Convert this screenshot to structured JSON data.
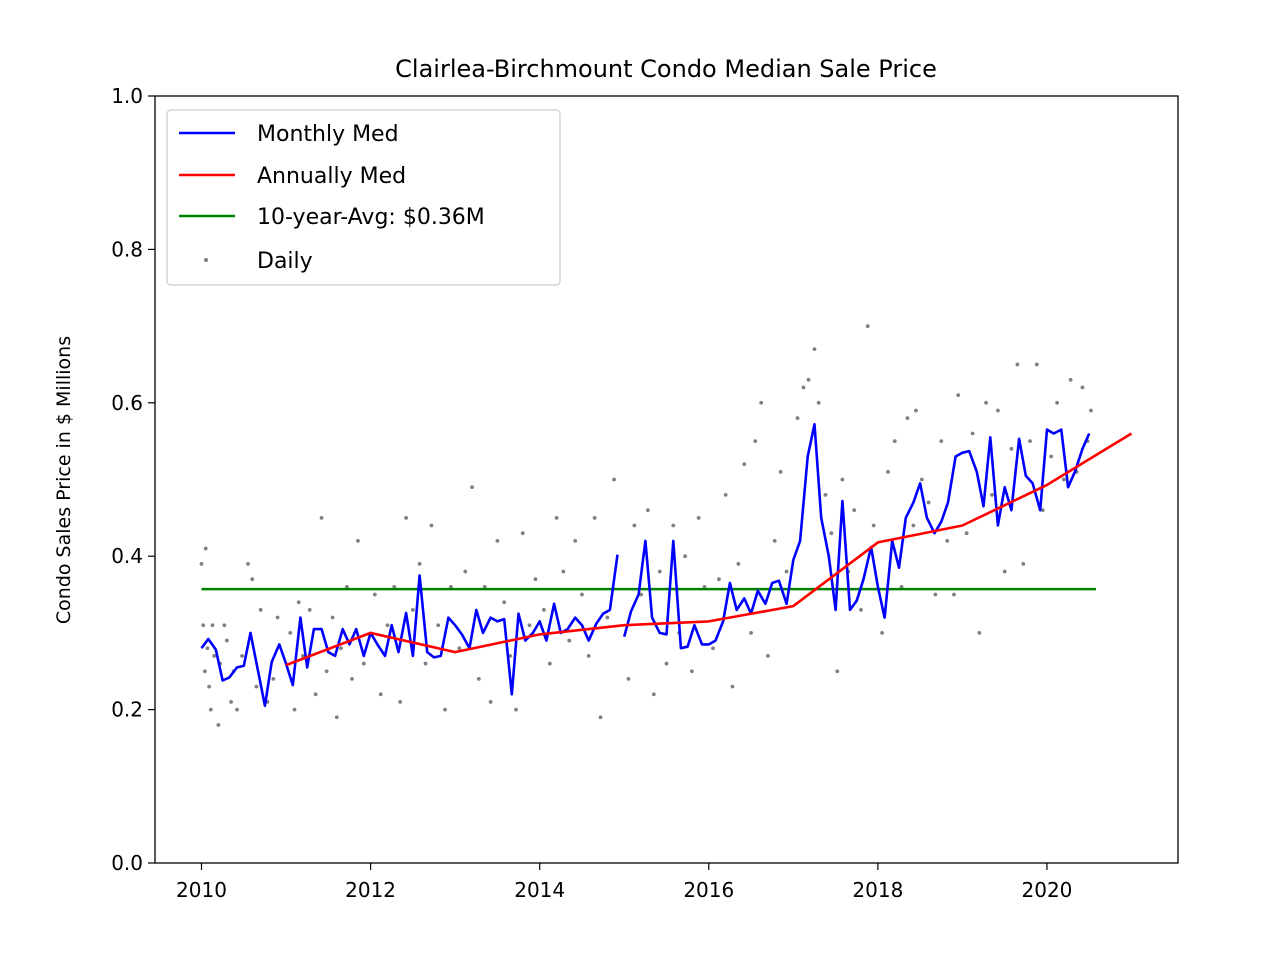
{
  "chart_data": {
    "type": "line",
    "title": "Clairlea-Birchmount Condo Median Sale Price",
    "xlabel": "",
    "ylabel": "Condo Sales Price in $ Millions",
    "xlim": [
      2009.45,
      2021.55
    ],
    "ylim": [
      0.0,
      1.0
    ],
    "x_ticks": [
      2010,
      2012,
      2014,
      2016,
      2018,
      2020
    ],
    "y_ticks": [
      "0.0",
      "0.2",
      "0.4",
      "0.6",
      "0.8",
      "1.0"
    ],
    "grid": false,
    "legend_position": "top-left",
    "colors": {
      "monthly": "#0000ff",
      "annual": "#ff0000",
      "avg": "#008000",
      "daily": "#808080"
    },
    "series": [
      {
        "name": "Monthly Med",
        "kind": "line",
        "segments": [
          {
            "x": [
              2010.0,
              2010.08,
              2010.17,
              2010.25,
              2010.33,
              2010.42,
              2010.5,
              2010.58,
              2010.67,
              2010.75,
              2010.83,
              2010.92,
              2011.0,
              2011.08,
              2011.17,
              2011.25,
              2011.33,
              2011.42,
              2011.5,
              2011.58,
              2011.67,
              2011.75,
              2011.83,
              2011.92,
              2012.0,
              2012.08,
              2012.17,
              2012.25,
              2012.33,
              2012.42,
              2012.5,
              2012.58,
              2012.67,
              2012.75,
              2012.83,
              2012.92,
              2013.0,
              2013.08,
              2013.17,
              2013.25,
              2013.33,
              2013.42,
              2013.5,
              2013.58,
              2013.67,
              2013.75,
              2013.83,
              2013.92,
              2014.0,
              2014.08,
              2014.17,
              2014.25,
              2014.33,
              2014.42,
              2014.5,
              2014.58,
              2014.67,
              2014.75,
              2014.83,
              2014.92
            ],
            "y": [
              0.28,
              0.292,
              0.278,
              0.238,
              0.242,
              0.255,
              0.257,
              0.3,
              0.25,
              0.205,
              0.262,
              0.285,
              0.26,
              0.232,
              0.32,
              0.255,
              0.305,
              0.305,
              0.275,
              0.27,
              0.305,
              0.285,
              0.305,
              0.27,
              0.3,
              0.285,
              0.27,
              0.31,
              0.275,
              0.326,
              0.27,
              0.375,
              0.275,
              0.268,
              0.27,
              0.32,
              0.31,
              0.298,
              0.28,
              0.33,
              0.3,
              0.32,
              0.315,
              0.318,
              0.22,
              0.325,
              0.29,
              0.3,
              0.315,
              0.29,
              0.338,
              0.3,
              0.305,
              0.32,
              0.31,
              0.29,
              0.312,
              0.325,
              0.33,
              0.402
            ]
          },
          {
            "x": [
              2015.0,
              2015.08,
              2015.17,
              2015.25,
              2015.33,
              2015.42,
              2015.5,
              2015.58,
              2015.67,
              2015.75,
              2015.83,
              2015.92,
              2016.0,
              2016.08,
              2016.17,
              2016.25,
              2016.33,
              2016.42,
              2016.5,
              2016.58,
              2016.67,
              2016.75,
              2016.83,
              2016.92,
              2017.0,
              2017.08,
              2017.17,
              2017.25,
              2017.33,
              2017.42,
              2017.5,
              2017.58,
              2017.67,
              2017.75,
              2017.83,
              2017.92,
              2018.0,
              2018.08,
              2018.17,
              2018.25,
              2018.33,
              2018.42,
              2018.5,
              2018.58,
              2018.67,
              2018.75,
              2018.83,
              2018.92,
              2019.0,
              2019.08,
              2019.17,
              2019.25,
              2019.33,
              2019.42,
              2019.5,
              2019.58,
              2019.67,
              2019.75,
              2019.83,
              2019.92,
              2020.0,
              2020.08,
              2020.17,
              2020.25,
              2020.33,
              2020.42,
              2020.5
            ],
            "y": [
              0.295,
              0.328,
              0.35,
              0.42,
              0.32,
              0.3,
              0.298,
              0.42,
              0.28,
              0.282,
              0.31,
              0.285,
              0.285,
              0.29,
              0.315,
              0.365,
              0.33,
              0.345,
              0.325,
              0.355,
              0.338,
              0.365,
              0.368,
              0.338,
              0.395,
              0.42,
              0.53,
              0.572,
              0.45,
              0.4,
              0.33,
              0.472,
              0.33,
              0.342,
              0.37,
              0.412,
              0.36,
              0.32,
              0.42,
              0.385,
              0.45,
              0.47,
              0.495,
              0.45,
              0.43,
              0.445,
              0.47,
              0.53,
              0.535,
              0.537,
              0.51,
              0.465,
              0.555,
              0.44,
              0.49,
              0.46,
              0.553,
              0.505,
              0.495,
              0.46,
              0.565,
              0.56,
              0.565,
              0.49,
              0.51,
              0.54,
              0.56
            ]
          }
        ]
      },
      {
        "name": "Annually Med",
        "kind": "line",
        "x": [
          2011.0,
          2012.0,
          2013.0,
          2014.0,
          2015.0,
          2016.0,
          2017.0,
          2018.0,
          2019.0,
          2020.0,
          2021.0
        ],
        "y": [
          0.258,
          0.3,
          0.275,
          0.298,
          0.31,
          0.315,
          0.335,
          0.418,
          0.44,
          0.493,
          0.56
        ]
      },
      {
        "name": "10-year-Avg: $0.36M",
        "kind": "hline",
        "x": [
          2010.0,
          2020.58
        ],
        "y": 0.357
      },
      {
        "name": "Daily",
        "kind": "scatter",
        "points": [
          [
            2010.0,
            0.39
          ],
          [
            2010.02,
            0.31
          ],
          [
            2010.04,
            0.25
          ],
          [
            2010.05,
            0.41
          ],
          [
            2010.07,
            0.28
          ],
          [
            2010.09,
            0.23
          ],
          [
            2010.11,
            0.2
          ],
          [
            2010.13,
            0.31
          ],
          [
            2010.15,
            0.27
          ],
          [
            2010.2,
            0.18
          ],
          [
            2010.22,
            0.26
          ],
          [
            2010.27,
            0.31
          ],
          [
            2010.3,
            0.29
          ],
          [
            2010.35,
            0.21
          ],
          [
            2010.38,
            0.25
          ],
          [
            2010.42,
            0.2
          ],
          [
            2010.48,
            0.27
          ],
          [
            2010.55,
            0.39
          ],
          [
            2010.6,
            0.37
          ],
          [
            2010.65,
            0.23
          ],
          [
            2010.7,
            0.33
          ],
          [
            2010.78,
            0.21
          ],
          [
            2010.85,
            0.24
          ],
          [
            2010.9,
            0.32
          ],
          [
            2011.05,
            0.3
          ],
          [
            2011.1,
            0.2
          ],
          [
            2011.15,
            0.34
          ],
          [
            2011.2,
            0.27
          ],
          [
            2011.28,
            0.33
          ],
          [
            2011.35,
            0.22
          ],
          [
            2011.42,
            0.45
          ],
          [
            2011.48,
            0.25
          ],
          [
            2011.55,
            0.32
          ],
          [
            2011.6,
            0.19
          ],
          [
            2011.65,
            0.28
          ],
          [
            2011.72,
            0.36
          ],
          [
            2011.78,
            0.24
          ],
          [
            2011.85,
            0.42
          ],
          [
            2011.92,
            0.26
          ],
          [
            2012.05,
            0.35
          ],
          [
            2012.12,
            0.22
          ],
          [
            2012.2,
            0.31
          ],
          [
            2012.28,
            0.36
          ],
          [
            2012.35,
            0.21
          ],
          [
            2012.42,
            0.45
          ],
          [
            2012.5,
            0.33
          ],
          [
            2012.58,
            0.39
          ],
          [
            2012.65,
            0.26
          ],
          [
            2012.72,
            0.44
          ],
          [
            2012.8,
            0.31
          ],
          [
            2012.88,
            0.2
          ],
          [
            2012.95,
            0.36
          ],
          [
            2013.05,
            0.28
          ],
          [
            2013.12,
            0.38
          ],
          [
            2013.2,
            0.49
          ],
          [
            2013.28,
            0.24
          ],
          [
            2013.35,
            0.36
          ],
          [
            2013.42,
            0.21
          ],
          [
            2013.5,
            0.42
          ],
          [
            2013.58,
            0.34
          ],
          [
            2013.65,
            0.27
          ],
          [
            2013.72,
            0.2
          ],
          [
            2013.8,
            0.43
          ],
          [
            2013.88,
            0.31
          ],
          [
            2013.95,
            0.37
          ],
          [
            2014.05,
            0.33
          ],
          [
            2014.12,
            0.26
          ],
          [
            2014.2,
            0.45
          ],
          [
            2014.28,
            0.38
          ],
          [
            2014.35,
            0.29
          ],
          [
            2014.42,
            0.42
          ],
          [
            2014.5,
            0.35
          ],
          [
            2014.58,
            0.27
          ],
          [
            2014.65,
            0.45
          ],
          [
            2014.72,
            0.19
          ],
          [
            2014.8,
            0.32
          ],
          [
            2014.88,
            0.5
          ],
          [
            2015.05,
            0.24
          ],
          [
            2015.12,
            0.44
          ],
          [
            2015.2,
            0.35
          ],
          [
            2015.28,
            0.46
          ],
          [
            2015.35,
            0.22
          ],
          [
            2015.42,
            0.38
          ],
          [
            2015.5,
            0.26
          ],
          [
            2015.58,
            0.44
          ],
          [
            2015.65,
            0.3
          ],
          [
            2015.72,
            0.4
          ],
          [
            2015.8,
            0.25
          ],
          [
            2015.88,
            0.45
          ],
          [
            2015.95,
            0.36
          ],
          [
            2016.05,
            0.28
          ],
          [
            2016.12,
            0.37
          ],
          [
            2016.2,
            0.48
          ],
          [
            2016.28,
            0.23
          ],
          [
            2016.35,
            0.39
          ],
          [
            2016.42,
            0.52
          ],
          [
            2016.5,
            0.3
          ],
          [
            2016.55,
            0.55
          ],
          [
            2016.62,
            0.6
          ],
          [
            2016.7,
            0.27
          ],
          [
            2016.78,
            0.42
          ],
          [
            2016.85,
            0.51
          ],
          [
            2016.92,
            0.38
          ],
          [
            2017.05,
            0.58
          ],
          [
            2017.12,
            0.62
          ],
          [
            2017.18,
            0.63
          ],
          [
            2017.25,
            0.67
          ],
          [
            2017.3,
            0.6
          ],
          [
            2017.38,
            0.48
          ],
          [
            2017.45,
            0.43
          ],
          [
            2017.52,
            0.25
          ],
          [
            2017.58,
            0.5
          ],
          [
            2017.65,
            0.38
          ],
          [
            2017.72,
            0.46
          ],
          [
            2017.8,
            0.33
          ],
          [
            2017.88,
            0.7
          ],
          [
            2017.95,
            0.44
          ],
          [
            2018.05,
            0.3
          ],
          [
            2018.12,
            0.51
          ],
          [
            2018.2,
            0.55
          ],
          [
            2018.28,
            0.36
          ],
          [
            2018.35,
            0.58
          ],
          [
            2018.42,
            0.44
          ],
          [
            2018.45,
            0.59
          ],
          [
            2018.52,
            0.5
          ],
          [
            2018.6,
            0.47
          ],
          [
            2018.68,
            0.35
          ],
          [
            2018.75,
            0.55
          ],
          [
            2018.82,
            0.42
          ],
          [
            2018.9,
            0.35
          ],
          [
            2018.95,
            0.61
          ],
          [
            2019.05,
            0.43
          ],
          [
            2019.12,
            0.56
          ],
          [
            2019.2,
            0.3
          ],
          [
            2019.28,
            0.6
          ],
          [
            2019.35,
            0.48
          ],
          [
            2019.42,
            0.59
          ],
          [
            2019.5,
            0.38
          ],
          [
            2019.58,
            0.54
          ],
          [
            2019.65,
            0.65
          ],
          [
            2019.72,
            0.39
          ],
          [
            2019.8,
            0.55
          ],
          [
            2019.88,
            0.65
          ],
          [
            2019.95,
            0.46
          ],
          [
            2020.05,
            0.53
          ],
          [
            2020.12,
            0.6
          ],
          [
            2020.2,
            0.5
          ],
          [
            2020.28,
            0.63
          ],
          [
            2020.35,
            0.51
          ],
          [
            2020.42,
            0.62
          ],
          [
            2020.48,
            0.55
          ],
          [
            2020.52,
            0.59
          ]
        ]
      }
    ]
  }
}
